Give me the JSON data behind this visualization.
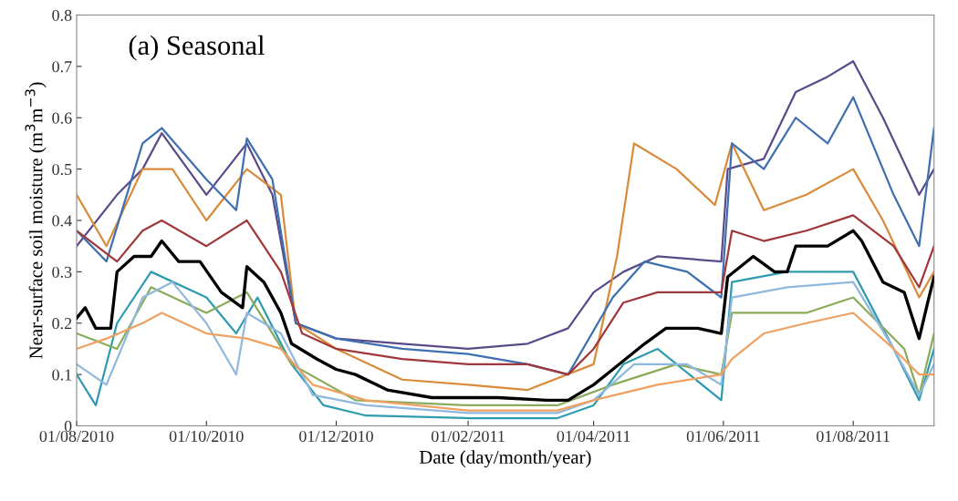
{
  "chart_data": {
    "type": "line",
    "xlabel": "Date (day/month/year)",
    "ylabel": "Near-surface soil moisture (m$^{3}$m$^{−3}$)",
    "annotations": [
      "(a) Seasonal"
    ],
    "xlim": [
      "2010-08-01",
      "2011-09-08"
    ],
    "xticks": [
      {
        "value": "2010-08-01",
        "label": "01/08/2010"
      },
      {
        "value": "2010-10-01",
        "label": "01/10/2010"
      },
      {
        "value": "2010-12-01",
        "label": "01/12/2010"
      },
      {
        "value": "2011-02-01",
        "label": "01/02/2011"
      },
      {
        "value": "2011-04-01",
        "label": "01/04/2011"
      },
      {
        "value": "2011-06-01",
        "label": "01/06/2011"
      },
      {
        "value": "2011-08-01",
        "label": "01/08/2011"
      }
    ],
    "ylim": [
      0,
      0.8
    ],
    "yticks": [
      0,
      0.1,
      0.2,
      0.3,
      0.4,
      0.5,
      0.6,
      0.7,
      0.8
    ],
    "grid": false,
    "legend": false,
    "marker": "none",
    "line_style": "solid",
    "series": [
      {
        "color": "#5b4a8a",
        "x": [
          "2010-08-01",
          "2010-08-20",
          "2010-09-01",
          "2010-09-10",
          "2010-10-01",
          "2010-10-20",
          "2010-11-01",
          "2010-11-12",
          "2010-12-01",
          "2011-01-01",
          "2011-02-01",
          "2011-03-01",
          "2011-03-20",
          "2011-04-01",
          "2011-04-15",
          "2011-05-01",
          "2011-05-31",
          "2011-06-03",
          "2011-06-20",
          "2011-07-05",
          "2011-07-20",
          "2011-08-01",
          "2011-08-15",
          "2011-09-01",
          "2011-09-08"
        ],
        "values": [
          0.35,
          0.45,
          0.5,
          0.57,
          0.45,
          0.55,
          0.45,
          0.2,
          0.17,
          0.16,
          0.15,
          0.16,
          0.19,
          0.26,
          0.3,
          0.33,
          0.32,
          0.5,
          0.52,
          0.65,
          0.68,
          0.71,
          0.6,
          0.45,
          0.5
        ]
      },
      {
        "color": "#d98b3a",
        "x": [
          "2010-08-01",
          "2010-08-15",
          "2010-09-01",
          "2010-09-15",
          "2010-10-01",
          "2010-10-20",
          "2010-11-05",
          "2010-11-12",
          "2010-12-01",
          "2011-01-01",
          "2011-02-01",
          "2011-03-01",
          "2011-04-01",
          "2011-04-12",
          "2011-04-20",
          "2011-05-10",
          "2011-05-28",
          "2011-06-05",
          "2011-06-20",
          "2011-07-10",
          "2011-08-01",
          "2011-08-15",
          "2011-09-01",
          "2011-09-08"
        ],
        "values": [
          0.45,
          0.35,
          0.5,
          0.5,
          0.4,
          0.5,
          0.45,
          0.2,
          0.15,
          0.09,
          0.08,
          0.07,
          0.12,
          0.33,
          0.55,
          0.5,
          0.43,
          0.55,
          0.42,
          0.45,
          0.5,
          0.4,
          0.25,
          0.3
        ]
      },
      {
        "color": "#3e6fb0",
        "x": [
          "2010-08-01",
          "2010-08-15",
          "2010-09-01",
          "2010-09-10",
          "2010-10-01",
          "2010-10-15",
          "2010-10-20",
          "2010-11-01",
          "2010-11-12",
          "2010-12-01",
          "2011-01-01",
          "2011-02-01",
          "2011-03-01",
          "2011-03-20",
          "2011-04-10",
          "2011-04-25",
          "2011-05-15",
          "2011-05-31",
          "2011-06-05",
          "2011-06-20",
          "2011-07-05",
          "2011-07-20",
          "2011-08-01",
          "2011-08-20",
          "2011-09-01",
          "2011-09-08"
        ],
        "values": [
          0.38,
          0.32,
          0.55,
          0.58,
          0.48,
          0.42,
          0.56,
          0.48,
          0.2,
          0.17,
          0.15,
          0.14,
          0.12,
          0.1,
          0.25,
          0.32,
          0.3,
          0.25,
          0.55,
          0.5,
          0.6,
          0.55,
          0.64,
          0.45,
          0.35,
          0.58
        ]
      },
      {
        "color": "#a0373a",
        "x": [
          "2010-08-01",
          "2010-08-20",
          "2010-09-01",
          "2010-09-10",
          "2010-10-01",
          "2010-10-20",
          "2010-11-05",
          "2010-11-15",
          "2010-12-01",
          "2011-01-01",
          "2011-02-01",
          "2011-03-01",
          "2011-03-20",
          "2011-04-01",
          "2011-04-15",
          "2011-05-01",
          "2011-05-31",
          "2011-06-05",
          "2011-06-20",
          "2011-07-10",
          "2011-08-01",
          "2011-08-20",
          "2011-09-01",
          "2011-09-08"
        ],
        "values": [
          0.38,
          0.32,
          0.38,
          0.4,
          0.35,
          0.4,
          0.3,
          0.18,
          0.15,
          0.13,
          0.12,
          0.12,
          0.1,
          0.15,
          0.24,
          0.26,
          0.26,
          0.38,
          0.36,
          0.38,
          0.41,
          0.35,
          0.27,
          0.35
        ]
      },
      {
        "color": "#2f9bb0",
        "x": [
          "2010-08-01",
          "2010-08-10",
          "2010-08-20",
          "2010-09-05",
          "2010-10-01",
          "2010-10-15",
          "2010-10-25",
          "2010-11-10",
          "2010-11-25",
          "2010-12-15",
          "2011-02-01",
          "2011-03-15",
          "2011-04-01",
          "2011-04-15",
          "2011-05-01",
          "2011-05-31",
          "2011-06-05",
          "2011-07-01",
          "2011-08-01",
          "2011-08-20",
          "2011-09-01",
          "2011-09-08"
        ],
        "values": [
          0.1,
          0.04,
          0.2,
          0.3,
          0.25,
          0.18,
          0.25,
          0.12,
          0.04,
          0.02,
          0.015,
          0.015,
          0.04,
          0.12,
          0.15,
          0.05,
          0.28,
          0.3,
          0.3,
          0.15,
          0.05,
          0.15
        ]
      },
      {
        "color": "#8aab5a",
        "x": [
          "2010-08-01",
          "2010-08-20",
          "2010-09-05",
          "2010-10-01",
          "2010-10-20",
          "2010-11-10",
          "2010-12-10",
          "2011-02-01",
          "2011-03-15",
          "2011-04-10",
          "2011-05-10",
          "2011-05-31",
          "2011-06-05",
          "2011-07-10",
          "2011-08-01",
          "2011-08-25",
          "2011-09-01",
          "2011-09-08"
        ],
        "values": [
          0.18,
          0.15,
          0.27,
          0.22,
          0.26,
          0.12,
          0.05,
          0.04,
          0.04,
          0.08,
          0.12,
          0.1,
          0.22,
          0.22,
          0.25,
          0.15,
          0.06,
          0.18
        ]
      },
      {
        "color": "#8fb8de",
        "x": [
          "2010-08-01",
          "2010-08-15",
          "2010-09-01",
          "2010-09-15",
          "2010-10-01",
          "2010-10-15",
          "2010-10-20",
          "2010-11-05",
          "2010-11-20",
          "2010-12-15",
          "2011-02-01",
          "2011-03-15",
          "2011-04-01",
          "2011-04-20",
          "2011-05-15",
          "2011-05-31",
          "2011-06-05",
          "2011-07-01",
          "2011-08-01",
          "2011-08-20",
          "2011-09-01",
          "2011-09-08"
        ],
        "values": [
          0.12,
          0.08,
          0.25,
          0.28,
          0.2,
          0.1,
          0.22,
          0.18,
          0.06,
          0.04,
          0.025,
          0.025,
          0.05,
          0.12,
          0.12,
          0.08,
          0.25,
          0.27,
          0.28,
          0.15,
          0.06,
          0.12
        ]
      },
      {
        "color": "#f0a060",
        "x": [
          "2010-08-01",
          "2010-08-15",
          "2010-09-01",
          "2010-09-10",
          "2010-10-01",
          "2010-10-20",
          "2010-11-05",
          "2010-11-20",
          "2010-12-15",
          "2011-02-01",
          "2011-03-15",
          "2011-04-01",
          "2011-05-01",
          "2011-05-31",
          "2011-06-05",
          "2011-06-20",
          "2011-07-10",
          "2011-08-01",
          "2011-08-20",
          "2011-09-01",
          "2011-09-08"
        ],
        "values": [
          0.15,
          0.17,
          0.2,
          0.22,
          0.18,
          0.17,
          0.15,
          0.08,
          0.05,
          0.03,
          0.03,
          0.05,
          0.08,
          0.1,
          0.13,
          0.18,
          0.2,
          0.22,
          0.15,
          0.1,
          0.1
        ]
      },
      {
        "color": "#000000",
        "x": [
          "2010-08-01",
          "2010-08-05",
          "2010-08-10",
          "2010-08-17",
          "2010-08-20",
          "2010-08-28",
          "2010-09-05",
          "2010-09-10",
          "2010-09-18",
          "2010-09-28",
          "2010-10-08",
          "2010-10-18",
          "2010-10-20",
          "2010-10-28",
          "2010-11-05",
          "2010-11-10",
          "2010-11-22",
          "2010-12-01",
          "2010-12-10",
          "2010-12-25",
          "2011-01-15",
          "2011-02-15",
          "2011-03-10",
          "2011-03-20",
          "2011-04-01",
          "2011-04-10",
          "2011-04-25",
          "2011-05-05",
          "2011-05-20",
          "2011-05-31",
          "2011-06-03",
          "2011-06-15",
          "2011-06-25",
          "2011-07-01",
          "2011-07-05",
          "2011-07-20",
          "2011-08-01",
          "2011-08-05",
          "2011-08-15",
          "2011-08-25",
          "2011-09-01",
          "2011-09-05",
          "2011-09-08"
        ],
        "values": [
          0.21,
          0.23,
          0.19,
          0.19,
          0.3,
          0.33,
          0.33,
          0.36,
          0.32,
          0.32,
          0.26,
          0.23,
          0.31,
          0.28,
          0.22,
          0.16,
          0.13,
          0.11,
          0.1,
          0.07,
          0.055,
          0.055,
          0.05,
          0.05,
          0.08,
          0.11,
          0.16,
          0.19,
          0.19,
          0.18,
          0.29,
          0.33,
          0.3,
          0.3,
          0.35,
          0.35,
          0.38,
          0.36,
          0.28,
          0.26,
          0.17,
          0.24,
          0.29
        ]
      }
    ]
  }
}
